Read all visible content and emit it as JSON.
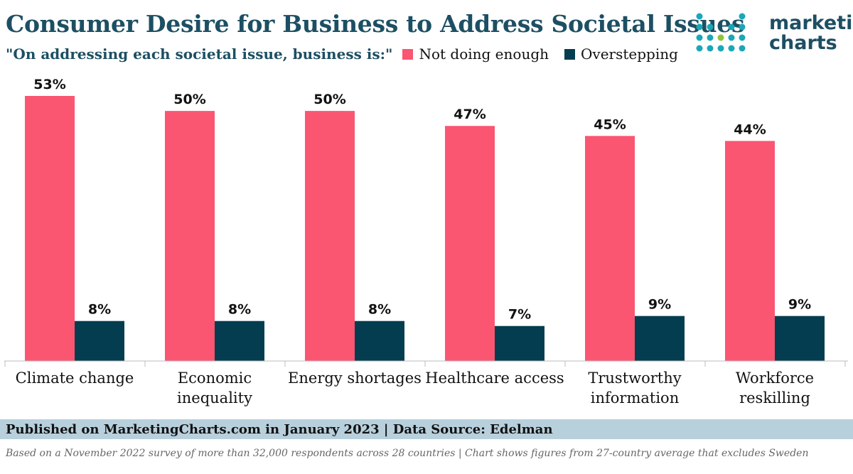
{
  "title": "Consumer Desire for Business to Address Societal Issues",
  "subtitle": "\"On addressing each societal issue, business is:\"",
  "logo": {
    "line1": "marketing",
    "line2": "charts"
  },
  "footer": {
    "published": "Published on MarketingCharts.com in January 2023 | Data Source: Edelman",
    "note": "Based on a November 2022 survey of more than 32,000 respondents across 28 countries | Chart shows figures from 27-country average that excludes Sweden"
  },
  "colors": {
    "not_enough": "#fa5672",
    "overstepping": "#043d4f",
    "title": "#1d4f63"
  },
  "chart_data": {
    "type": "bar",
    "title": "Consumer Desire for Business to Address Societal Issues",
    "categories": [
      [
        "Climate change"
      ],
      [
        "Economic",
        "inequality"
      ],
      [
        "Energy shortages"
      ],
      [
        "Healthcare access"
      ],
      [
        "Trustworthy",
        "information"
      ],
      [
        "Workforce",
        "reskilling"
      ]
    ],
    "series": [
      {
        "name": "Not doing enough",
        "values": [
          53,
          50,
          50,
          47,
          45,
          44
        ],
        "labels": [
          "53%",
          "50%",
          "50%",
          "47%",
          "45%",
          "44%"
        ]
      },
      {
        "name": "Overstepping",
        "values": [
          8,
          8,
          8,
          7,
          9,
          9
        ],
        "labels": [
          "8%",
          "8%",
          "8%",
          "7%",
          "9%",
          "9%"
        ]
      }
    ],
    "ylim": [
      0,
      53
    ],
    "grid": false,
    "legend": "top"
  }
}
